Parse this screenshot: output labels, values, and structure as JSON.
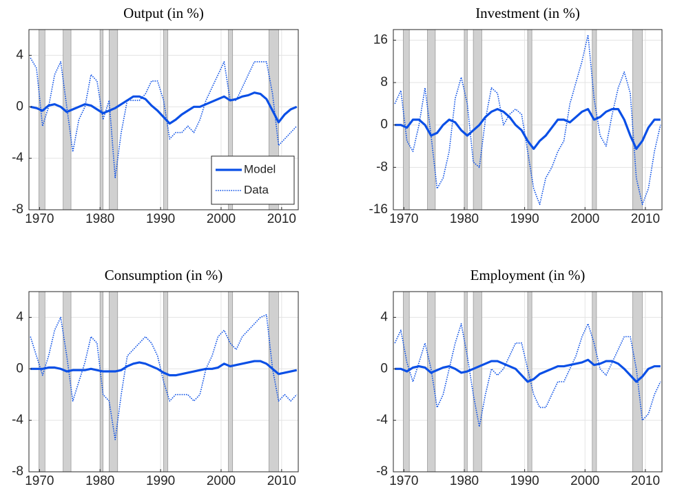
{
  "chart_data": [
    {
      "type": "line",
      "title": "Output (in %)",
      "x": [
        1968.5,
        1969.5,
        1970.5,
        1971.5,
        1972.5,
        1973.5,
        1974.5,
        1975.5,
        1976.5,
        1977.5,
        1978.5,
        1979.5,
        1980.5,
        1981.5,
        1982.5,
        1983.5,
        1984.5,
        1985.5,
        1986.5,
        1987.5,
        1988.5,
        1989.5,
        1990.5,
        1991.5,
        1992.5,
        1993.5,
        1994.5,
        1995.5,
        1996.5,
        1997.5,
        1998.5,
        1999.5,
        2000.5,
        2001.5,
        2002.5,
        2003.5,
        2004.5,
        2005.5,
        2006.5,
        2007.5,
        2008.5,
        2009.5,
        2010.5,
        2011.5,
        2012.5
      ],
      "series": [
        {
          "name": "Model",
          "color": "#0a4fe6",
          "style": "solid",
          "values": [
            0,
            -0.1,
            -0.3,
            0.1,
            0.2,
            0,
            -0.4,
            -0.2,
            0,
            0.2,
            0.1,
            -0.2,
            -0.5,
            -0.3,
            -0.1,
            0.2,
            0.5,
            0.8,
            0.8,
            0.6,
            0.1,
            -0.3,
            -0.8,
            -1.3,
            -1,
            -0.6,
            -0.3,
            0,
            0,
            0.2,
            0.4,
            0.6,
            0.8,
            0.5,
            0.6,
            0.8,
            0.9,
            1.1,
            1,
            0.6,
            -0.3,
            -1.2,
            -0.6,
            -0.2,
            0
          ]
        },
        {
          "name": "Data",
          "color": "#0a4fe6",
          "style": "dotted",
          "values": [
            3.8,
            3,
            -1.5,
            0,
            2.5,
            3.5,
            0,
            -3.5,
            -1,
            0,
            2.5,
            2,
            -1,
            0.5,
            -5.5,
            -2,
            0.5,
            0.5,
            0.5,
            1,
            2,
            2,
            0.5,
            -2.5,
            -2,
            -2,
            -1.5,
            -2,
            -1,
            0.5,
            1.5,
            2.5,
            3.5,
            0.5,
            0.5,
            1.5,
            2.5,
            3.5,
            3.5,
            3.5,
            1,
            -3,
            -2.5,
            -2,
            -1.5
          ]
        }
      ],
      "xlim": [
        1968.25,
        2012.75
      ],
      "ylim": [
        -8,
        6
      ],
      "xticks": [
        1970,
        1980,
        1990,
        2000,
        2010
      ],
      "yticks": [
        -8,
        -4,
        0,
        4
      ],
      "shaded_regions": [
        [
          1969.9,
          1970.9
        ],
        [
          1973.9,
          1975.2
        ],
        [
          1980,
          1980.5
        ],
        [
          1981.5,
          1982.9
        ],
        [
          1990.5,
          1991.2
        ],
        [
          2001.2,
          2001.9
        ],
        [
          2007.9,
          2009.5
        ]
      ],
      "grid": true,
      "legend": "southeast"
    },
    {
      "type": "line",
      "title": "Investment (in %)",
      "x": [
        1968.5,
        1969.5,
        1970.5,
        1971.5,
        1972.5,
        1973.5,
        1974.5,
        1975.5,
        1976.5,
        1977.5,
        1978.5,
        1979.5,
        1980.5,
        1981.5,
        1982.5,
        1983.5,
        1984.5,
        1985.5,
        1986.5,
        1987.5,
        1988.5,
        1989.5,
        1990.5,
        1991.5,
        1992.5,
        1993.5,
        1994.5,
        1995.5,
        1996.5,
        1997.5,
        1998.5,
        1999.5,
        2000.5,
        2001.5,
        2002.5,
        2003.5,
        2004.5,
        2005.5,
        2006.5,
        2007.5,
        2008.5,
        2009.5,
        2010.5,
        2011.5,
        2012.5
      ],
      "series": [
        {
          "name": "Model",
          "color": "#0a4fe6",
          "style": "solid",
          "values": [
            0,
            0,
            -0.5,
            1,
            1,
            0,
            -2,
            -1.5,
            0,
            1,
            0.5,
            -1,
            -2,
            -1,
            0,
            1.5,
            2.5,
            3,
            2.5,
            1.5,
            0,
            -1,
            -3,
            -4.5,
            -3,
            -2,
            -0.5,
            1,
            1,
            0.5,
            1.5,
            2.5,
            3,
            1,
            1.5,
            2.5,
            3,
            3,
            1,
            -2,
            -4.5,
            -3,
            -0.5,
            1,
            1
          ]
        },
        {
          "name": "Data",
          "color": "#0a4fe6",
          "style": "dotted",
          "values": [
            4,
            6.5,
            -3,
            -5,
            0,
            7,
            -2,
            -12,
            -10,
            -5,
            5,
            9,
            4,
            -7,
            -8,
            1,
            7,
            6,
            0,
            2,
            3,
            2,
            -5,
            -12,
            -15,
            -10,
            -8,
            -5,
            -3,
            4,
            8,
            12,
            17,
            5,
            -2,
            -4,
            2,
            7,
            10,
            6,
            -10,
            -15,
            -12,
            -5,
            0
          ]
        }
      ],
      "xlim": [
        1968.25,
        2012.75
      ],
      "ylim": [
        -16,
        18
      ],
      "xticks": [
        1970,
        1980,
        1990,
        2000,
        2010
      ],
      "yticks": [
        -16,
        -8,
        0,
        8,
        16
      ],
      "shaded_regions": [
        [
          1969.9,
          1970.9
        ],
        [
          1973.9,
          1975.2
        ],
        [
          1980,
          1980.5
        ],
        [
          1981.5,
          1982.9
        ],
        [
          1990.5,
          1991.2
        ],
        [
          2001.2,
          2001.9
        ],
        [
          2007.9,
          2009.5
        ]
      ],
      "grid": true
    },
    {
      "type": "line",
      "title": "Consumption (in %)",
      "x": [
        1968.5,
        1969.5,
        1970.5,
        1971.5,
        1972.5,
        1973.5,
        1974.5,
        1975.5,
        1976.5,
        1977.5,
        1978.5,
        1979.5,
        1980.5,
        1981.5,
        1982.5,
        1983.5,
        1984.5,
        1985.5,
        1986.5,
        1987.5,
        1988.5,
        1989.5,
        1990.5,
        1991.5,
        1992.5,
        1993.5,
        1994.5,
        1995.5,
        1996.5,
        1997.5,
        1998.5,
        1999.5,
        2000.5,
        2001.5,
        2002.5,
        2003.5,
        2004.5,
        2005.5,
        2006.5,
        2007.5,
        2008.5,
        2009.5,
        2010.5,
        2011.5,
        2012.5
      ],
      "series": [
        {
          "name": "Model",
          "color": "#0a4fe6",
          "style": "solid",
          "values": [
            0,
            0,
            0,
            0.1,
            0.1,
            0,
            -0.2,
            -0.1,
            -0.1,
            -0.1,
            0,
            -0.1,
            -0.2,
            -0.2,
            -0.2,
            -0.1,
            0.2,
            0.4,
            0.5,
            0.4,
            0.2,
            0,
            -0.3,
            -0.5,
            -0.5,
            -0.4,
            -0.3,
            -0.2,
            -0.1,
            0,
            0,
            0.1,
            0.4,
            0.2,
            0.3,
            0.4,
            0.5,
            0.6,
            0.6,
            0.4,
            0,
            -0.4,
            -0.3,
            -0.2,
            -0.1
          ]
        },
        {
          "name": "Data",
          "color": "#0a4fe6",
          "style": "dotted",
          "values": [
            2.5,
            1,
            -0.5,
            1,
            3,
            4,
            1,
            -2.5,
            -1,
            0.5,
            2.5,
            2,
            -2,
            -2.5,
            -5.5,
            -2,
            1,
            1.5,
            2,
            2.5,
            2,
            1,
            -1,
            -2.5,
            -2,
            -2,
            -2,
            -2.5,
            -2,
            0,
            1,
            2.5,
            3,
            2,
            1.5,
            2.5,
            3,
            3.5,
            4,
            4.2,
            0,
            -2.5,
            -2,
            -2.5,
            -2
          ]
        }
      ],
      "xlim": [
        1968.25,
        2012.75
      ],
      "ylim": [
        -8,
        6
      ],
      "xticks": [
        1970,
        1980,
        1990,
        2000,
        2010
      ],
      "yticks": [
        -8,
        -4,
        0,
        4
      ],
      "shaded_regions": [
        [
          1969.9,
          1970.9
        ],
        [
          1973.9,
          1975.2
        ],
        [
          1980,
          1980.5
        ],
        [
          1981.5,
          1982.9
        ],
        [
          1990.5,
          1991.2
        ],
        [
          2001.2,
          2001.9
        ],
        [
          2007.9,
          2009.5
        ]
      ],
      "grid": true
    },
    {
      "type": "line",
      "title": "Employment (in %)",
      "x": [
        1968.5,
        1969.5,
        1970.5,
        1971.5,
        1972.5,
        1973.5,
        1974.5,
        1975.5,
        1976.5,
        1977.5,
        1978.5,
        1979.5,
        1980.5,
        1981.5,
        1982.5,
        1983.5,
        1984.5,
        1985.5,
        1986.5,
        1987.5,
        1988.5,
        1989.5,
        1990.5,
        1991.5,
        1992.5,
        1993.5,
        1994.5,
        1995.5,
        1996.5,
        1997.5,
        1998.5,
        1999.5,
        2000.5,
        2001.5,
        2002.5,
        2003.5,
        2004.5,
        2005.5,
        2006.5,
        2007.5,
        2008.5,
        2009.5,
        2010.5,
        2011.5,
        2012.5
      ],
      "series": [
        {
          "name": "Model",
          "color": "#0a4fe6",
          "style": "solid",
          "values": [
            0,
            0,
            -0.2,
            0.1,
            0.2,
            0.1,
            -0.3,
            -0.1,
            0.1,
            0.2,
            0,
            -0.3,
            -0.2,
            0,
            0.2,
            0.4,
            0.6,
            0.6,
            0.4,
            0.2,
            0,
            -0.5,
            -1,
            -0.8,
            -0.4,
            -0.2,
            0,
            0.2,
            0.2,
            0.3,
            0.4,
            0.5,
            0.7,
            0.3,
            0.4,
            0.6,
            0.6,
            0.4,
            0,
            -0.5,
            -1,
            -0.6,
            0,
            0.2,
            0.2
          ]
        },
        {
          "name": "Data",
          "color": "#0a4fe6",
          "style": "dotted",
          "values": [
            2,
            3,
            0.5,
            -1,
            0.5,
            2,
            0,
            -3,
            -2,
            0,
            2,
            3.5,
            1,
            -2,
            -4.5,
            -2,
            0,
            -0.5,
            0,
            1,
            2,
            2,
            0,
            -2,
            -3,
            -3,
            -2,
            -1,
            -1,
            0,
            1,
            2.5,
            3.5,
            2,
            0,
            -0.5,
            0.5,
            1.5,
            2.5,
            2.5,
            0,
            -4,
            -3.5,
            -2,
            -1
          ]
        }
      ],
      "xlim": [
        1968.25,
        2012.75
      ],
      "ylim": [
        -8,
        6
      ],
      "xticks": [
        1970,
        1980,
        1990,
        2000,
        2010
      ],
      "yticks": [
        -8,
        -4,
        0,
        4
      ],
      "shaded_regions": [
        [
          1969.9,
          1970.9
        ],
        [
          1973.9,
          1975.2
        ],
        [
          1980,
          1980.5
        ],
        [
          1981.5,
          1982.9
        ],
        [
          1990.5,
          1991.2
        ],
        [
          2001.2,
          2001.9
        ],
        [
          2007.9,
          2009.5
        ]
      ],
      "grid": true
    }
  ]
}
